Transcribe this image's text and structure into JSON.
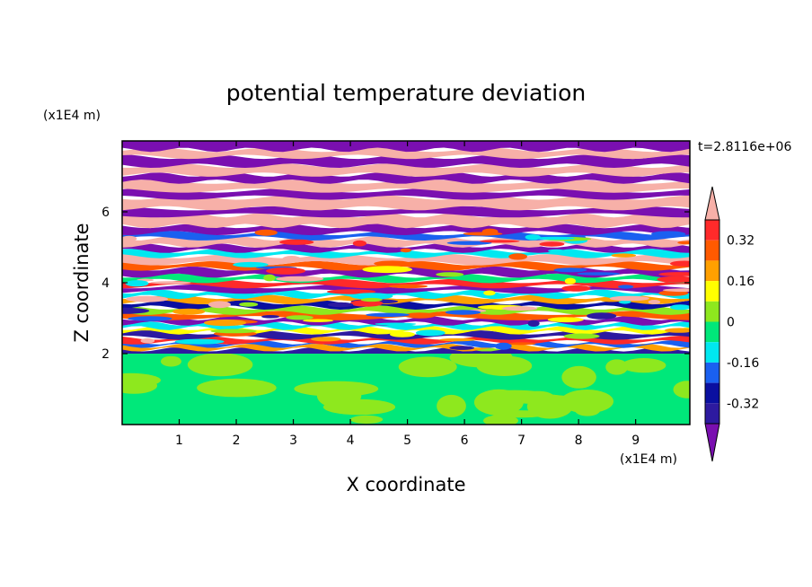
{
  "chart_data": {
    "type": "heatmap",
    "title": "potential temperature deviation",
    "xlabel": "X coordinate",
    "ylabel": "Z coordinate",
    "x_unit": "(x1E4 m)",
    "y_unit": "(x1E4 m)",
    "time_label": "t=2.8116e+06",
    "x_ticks": [
      "1",
      "2",
      "3",
      "4",
      "5",
      "6",
      "7",
      "8",
      "9"
    ],
    "x_tick_values": [
      1,
      2,
      3,
      4,
      5,
      6,
      7,
      8,
      9
    ],
    "y_ticks": [
      "2",
      "4",
      "6"
    ],
    "y_tick_values": [
      2,
      4,
      6
    ],
    "xlim": [
      0,
      9.95
    ],
    "ylim": [
      0,
      8
    ],
    "colorbar": {
      "levels": [
        -0.4,
        -0.32,
        -0.24,
        -0.16,
        -0.08,
        0,
        0.08,
        0.16,
        0.24,
        0.32,
        0.4
      ],
      "tick_labels": [
        "0.32",
        "0.16",
        "0",
        "-0.16",
        "-0.32"
      ],
      "tick_values": [
        0.32,
        0.16,
        0,
        -0.16,
        -0.32
      ],
      "colors": [
        "#7a0fb0",
        "#2d1aa0",
        "#0a0fa0",
        "#1a60f0",
        "#00e8f0",
        "#00e87a",
        "#8ee81e",
        "#ffff00",
        "#ffa000",
        "#ff5a00",
        "#ff2a2a",
        "#f7b0a8"
      ],
      "extend": "both"
    },
    "layers_description_free": false,
    "bands": [
      {
        "y0": 0.0,
        "y1": 2.0,
        "color_index": 5,
        "noise_color_index": 6
      },
      {
        "y0": 2.0,
        "y1": 2.12,
        "color_index": 1
      },
      {
        "y0": 2.12,
        "y1": 2.22,
        "color_index": 8
      },
      {
        "y0": 2.22,
        "y1": 2.32,
        "color_index": 3
      },
      {
        "y0": 2.32,
        "y1": 2.45,
        "color_index": 10
      },
      {
        "y0": 2.45,
        "y1": 2.6,
        "color_index": 1
      },
      {
        "y0": 2.6,
        "y1": 2.72,
        "color_index": 7
      },
      {
        "y0": 2.72,
        "y1": 2.85,
        "color_index": 4
      },
      {
        "y0": 2.85,
        "y1": 3.0,
        "color_index": 0
      },
      {
        "y0": 3.0,
        "y1": 3.15,
        "color_index": 9
      },
      {
        "y0": 3.15,
        "y1": 3.3,
        "color_index": 6
      },
      {
        "y0": 3.3,
        "y1": 3.45,
        "color_index": 2
      },
      {
        "y0": 3.45,
        "y1": 3.6,
        "color_index": 8
      },
      {
        "y0": 3.6,
        "y1": 3.75,
        "color_index": 4
      },
      {
        "y0": 3.75,
        "y1": 3.9,
        "color_index": 0
      },
      {
        "y0": 3.9,
        "y1": 4.05,
        "color_index": 10
      },
      {
        "y0": 4.05,
        "y1": 4.2,
        "color_index": 5
      },
      {
        "y0": 4.2,
        "y1": 4.4,
        "color_index": 0
      },
      {
        "y0": 4.4,
        "y1": 4.55,
        "color_index": 9
      },
      {
        "y0": 4.55,
        "y1": 4.75,
        "color_index": 11
      },
      {
        "y0": 4.75,
        "y1": 4.9,
        "color_index": 4
      },
      {
        "y0": 4.9,
        "y1": 5.05,
        "color_index": 0
      },
      {
        "y0": 5.05,
        "y1": 5.25,
        "color_index": 11
      },
      {
        "y0": 5.25,
        "y1": 5.4,
        "color_index": 3
      },
      {
        "y0": 5.4,
        "y1": 5.6,
        "color_index": 0
      },
      {
        "y0": 5.6,
        "y1": 5.9,
        "color_index": 11
      },
      {
        "y0": 5.9,
        "y1": 6.1,
        "color_index": 0
      },
      {
        "y0": 6.1,
        "y1": 6.4,
        "color_index": 11
      },
      {
        "y0": 6.4,
        "y1": 6.6,
        "color_index": 0
      },
      {
        "y0": 6.6,
        "y1": 6.85,
        "color_index": 11
      },
      {
        "y0": 6.85,
        "y1": 7.05,
        "color_index": 0
      },
      {
        "y0": 7.05,
        "y1": 7.3,
        "color_index": 11
      },
      {
        "y0": 7.3,
        "y1": 7.55,
        "color_index": 0
      },
      {
        "y0": 7.55,
        "y1": 7.75,
        "color_index": 11
      },
      {
        "y0": 7.75,
        "y1": 8.0,
        "color_index": 0
      }
    ],
    "grid": false
  }
}
